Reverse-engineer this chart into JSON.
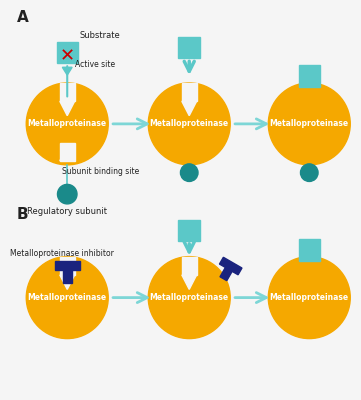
{
  "bg_color": "#f5f5f5",
  "gold_color": "#F5A800",
  "teal_color": "#5BC8C8",
  "teal_dark": "#1A8A8A",
  "dark_blue": "#1A237E",
  "red_color": "#CC0000",
  "arrow_color": "#7DD6D6",
  "text_color": "#222222",
  "label_A": "A",
  "label_B": "B",
  "substrate_label": "Substrate",
  "active_site_label": "Active site",
  "subunit_binding_label": "Subunit binding site",
  "regulatory_label": "Regulatory subunit",
  "inhibitor_label": "Metalloproteinase inhibitor",
  "enzyme_label": "Metalloproteinase"
}
